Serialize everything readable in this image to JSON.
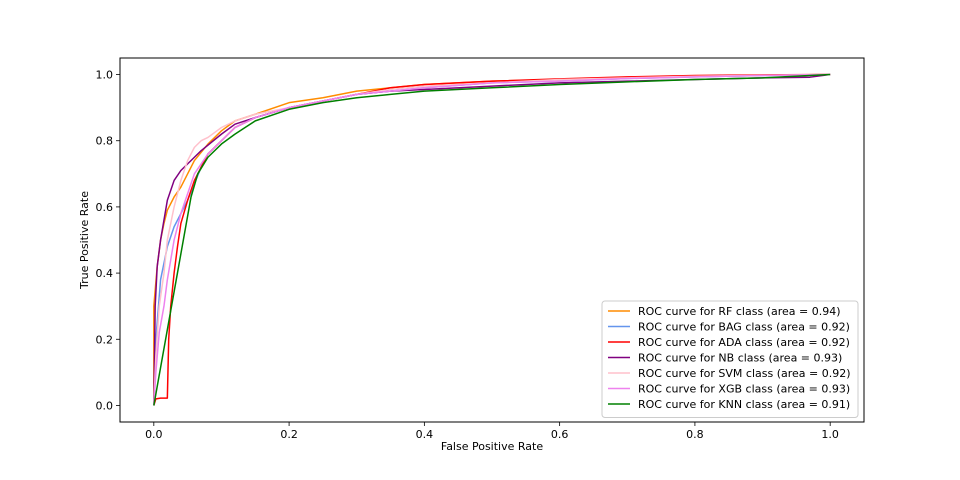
{
  "chart_data": {
    "type": "line",
    "title": "",
    "xlabel": "False Positive Rate",
    "ylabel": "True Positive Rate",
    "xlim": [
      -0.05,
      1.05
    ],
    "ylim": [
      -0.05,
      1.05
    ],
    "xticks": [
      0.0,
      0.2,
      0.4,
      0.6,
      0.8,
      1.0
    ],
    "yticks": [
      0.0,
      0.2,
      0.4,
      0.6,
      0.8,
      1.0
    ],
    "xtick_labels": [
      "0.0",
      "0.2",
      "0.4",
      "0.6",
      "0.8",
      "1.0"
    ],
    "ytick_labels": [
      "0.0",
      "0.2",
      "0.4",
      "0.6",
      "0.8",
      "1.0"
    ],
    "grid": false,
    "legend_position": "lower-right",
    "series": [
      {
        "name": "ROC curve for RF class (area = 0.94)",
        "color": "#ff8c00",
        "x": [
          0.0,
          0.0,
          0.005,
          0.01,
          0.015,
          0.02,
          0.03,
          0.04,
          0.05,
          0.06,
          0.08,
          0.1,
          0.12,
          0.15,
          0.2,
          0.25,
          0.3,
          0.35,
          0.4,
          0.5,
          0.6,
          0.7,
          0.8,
          0.9,
          1.0
        ],
        "y": [
          0.0,
          0.3,
          0.42,
          0.5,
          0.55,
          0.59,
          0.63,
          0.66,
          0.7,
          0.74,
          0.79,
          0.83,
          0.86,
          0.88,
          0.915,
          0.93,
          0.95,
          0.96,
          0.97,
          0.98,
          0.985,
          0.99,
          0.995,
          0.998,
          1.0
        ]
      },
      {
        "name": "ROC curve for BAG class (area = 0.92)",
        "color": "#6495ed",
        "x": [
          0.0,
          0.003,
          0.01,
          0.02,
          0.03,
          0.04,
          0.05,
          0.06,
          0.07,
          0.08,
          0.1,
          0.12,
          0.15,
          0.2,
          0.25,
          0.3,
          0.35,
          0.4,
          0.5,
          0.6,
          0.7,
          0.8,
          0.9,
          1.0
        ],
        "y": [
          0.0,
          0.2,
          0.38,
          0.48,
          0.54,
          0.58,
          0.62,
          0.67,
          0.72,
          0.76,
          0.8,
          0.84,
          0.87,
          0.9,
          0.92,
          0.94,
          0.95,
          0.96,
          0.975,
          0.98,
          0.988,
          0.993,
          0.997,
          1.0
        ]
      },
      {
        "name": "ROC curve for ADA class (area = 0.92)",
        "color": "#ff0000",
        "x": [
          0.0,
          0.003,
          0.01,
          0.02,
          0.022,
          0.025,
          0.03,
          0.035,
          0.04,
          0.05,
          0.06,
          0.07,
          0.08,
          0.1,
          0.12,
          0.15,
          0.2,
          0.25,
          0.3,
          0.35,
          0.4,
          0.5,
          0.6,
          0.7,
          0.8,
          0.9,
          1.0
        ],
        "y": [
          0.0,
          0.02,
          0.022,
          0.022,
          0.2,
          0.3,
          0.4,
          0.48,
          0.55,
          0.62,
          0.68,
          0.72,
          0.76,
          0.8,
          0.84,
          0.87,
          0.9,
          0.92,
          0.94,
          0.96,
          0.97,
          0.98,
          0.987,
          0.993,
          0.997,
          0.999,
          1.0
        ]
      },
      {
        "name": "ROC curve for NB class (area = 0.93)",
        "color": "#800080",
        "x": [
          0.0,
          0.002,
          0.005,
          0.01,
          0.015,
          0.02,
          0.03,
          0.04,
          0.05,
          0.07,
          0.1,
          0.12,
          0.15,
          0.2,
          0.25,
          0.3,
          0.35,
          0.4,
          0.5,
          0.6,
          0.7,
          0.8,
          0.9,
          0.97,
          1.0
        ],
        "y": [
          0.0,
          0.3,
          0.42,
          0.5,
          0.56,
          0.62,
          0.68,
          0.71,
          0.73,
          0.77,
          0.82,
          0.85,
          0.87,
          0.9,
          0.92,
          0.94,
          0.95,
          0.955,
          0.965,
          0.975,
          0.98,
          0.985,
          0.99,
          0.992,
          1.0
        ]
      },
      {
        "name": "ROC curve for SVM class (area = 0.92)",
        "color": "#ffc0cb",
        "x": [
          0.0,
          0.003,
          0.008,
          0.015,
          0.02,
          0.03,
          0.04,
          0.05,
          0.06,
          0.07,
          0.08,
          0.1,
          0.12,
          0.15,
          0.2,
          0.25,
          0.3,
          0.35,
          0.4,
          0.5,
          0.6,
          0.7,
          0.8,
          0.9,
          1.0
        ],
        "y": [
          0.0,
          0.15,
          0.3,
          0.4,
          0.5,
          0.6,
          0.68,
          0.74,
          0.78,
          0.8,
          0.81,
          0.84,
          0.86,
          0.88,
          0.9,
          0.92,
          0.94,
          0.955,
          0.965,
          0.975,
          0.985,
          0.99,
          0.995,
          0.998,
          1.0
        ]
      },
      {
        "name": "ROC curve for XGB class (area = 0.93)",
        "color": "#ee82ee",
        "x": [
          0.0,
          0.003,
          0.008,
          0.015,
          0.02,
          0.03,
          0.04,
          0.05,
          0.06,
          0.08,
          0.1,
          0.12,
          0.15,
          0.2,
          0.25,
          0.3,
          0.35,
          0.4,
          0.5,
          0.6,
          0.7,
          0.8,
          0.9,
          1.0
        ],
        "y": [
          0.0,
          0.1,
          0.22,
          0.3,
          0.38,
          0.5,
          0.58,
          0.64,
          0.7,
          0.76,
          0.8,
          0.84,
          0.87,
          0.9,
          0.92,
          0.94,
          0.95,
          0.96,
          0.975,
          0.98,
          0.988,
          0.993,
          0.997,
          1.0
        ]
      },
      {
        "name": "ROC curve for KNN class (area = 0.91)",
        "color": "#008000",
        "x": [
          0.0,
          0.055,
          0.065,
          0.08,
          0.1,
          0.12,
          0.15,
          0.2,
          0.25,
          0.3,
          0.35,
          0.4,
          0.5,
          0.6,
          0.7,
          0.8,
          0.9,
          1.0
        ],
        "y": [
          0.0,
          0.63,
          0.7,
          0.75,
          0.79,
          0.82,
          0.86,
          0.895,
          0.915,
          0.93,
          0.94,
          0.95,
          0.96,
          0.97,
          0.978,
          0.985,
          0.99,
          1.0
        ]
      }
    ]
  }
}
